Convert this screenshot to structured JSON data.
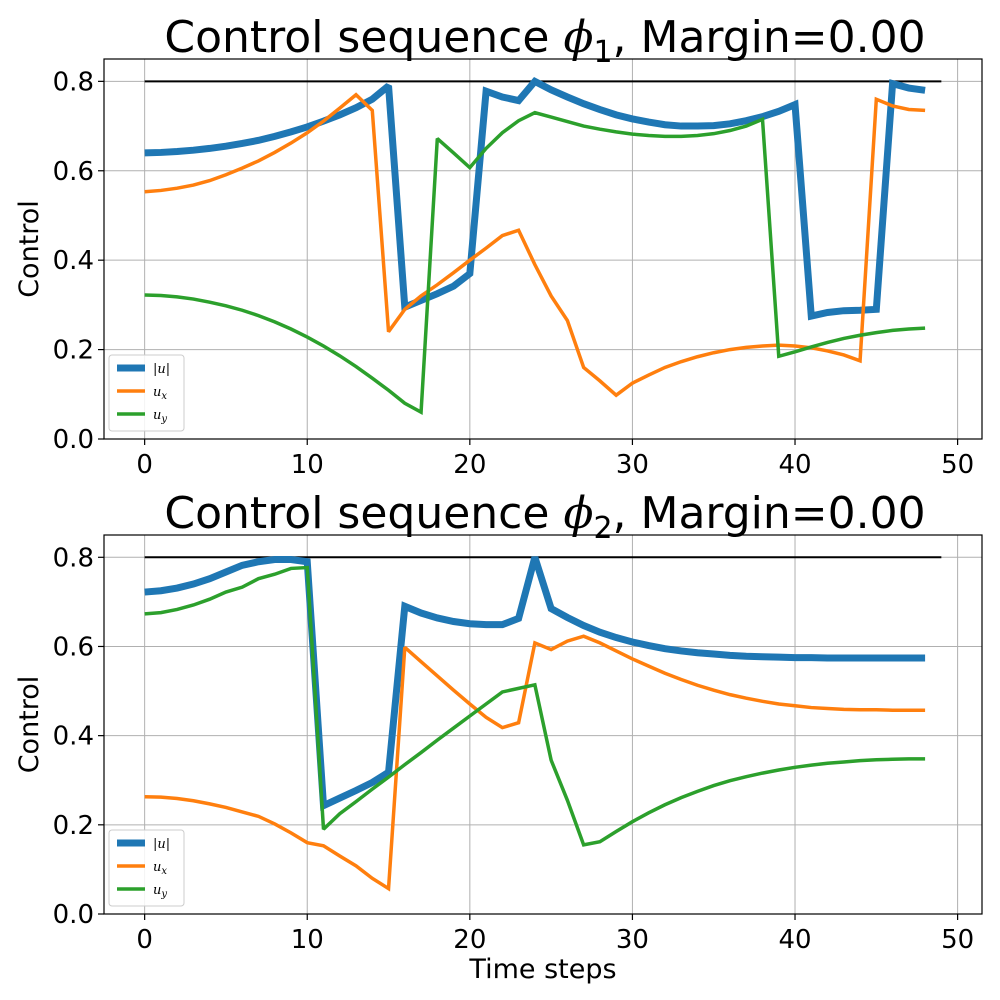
{
  "chart_data": [
    {
      "type": "line",
      "title": "Control sequence ϕ₁, Margin=0.00",
      "title_main": "Control sequence ",
      "title_symbol": "ϕ",
      "title_sub": "1",
      "title_tail": ", Margin=0.00",
      "xlabel": "",
      "ylabel": "Control",
      "xlim": [
        -2.5,
        51.5
      ],
      "ylim": [
        0.0,
        0.85
      ],
      "xticks": [
        0,
        10,
        20,
        30,
        40,
        50
      ],
      "xtick_labels": [
        "0",
        "10",
        "20",
        "30",
        "40",
        "50"
      ],
      "yticks": [
        0.0,
        0.2,
        0.4,
        0.6,
        0.8
      ],
      "ytick_labels": [
        "0.0",
        "0.2",
        "0.4",
        "0.6",
        "0.8"
      ],
      "grid": true,
      "legend_position": "lower-left",
      "reference_line": {
        "y": 0.8,
        "x": [
          0,
          49
        ],
        "color": "#000000"
      },
      "series": [
        {
          "name": "|u|",
          "legend_label": "|u|",
          "legend_sub": "",
          "color": "#1f77b4",
          "x": [
            0,
            1,
            2,
            3,
            4,
            5,
            6,
            7,
            8,
            9,
            10,
            11,
            12,
            13,
            14,
            15,
            16,
            17,
            18,
            19,
            20,
            21,
            22,
            23,
            24,
            25,
            26,
            27,
            28,
            29,
            30,
            31,
            32,
            33,
            34,
            35,
            36,
            37,
            38,
            39,
            40,
            41,
            42,
            43,
            44,
            45,
            46,
            47,
            48
          ],
          "values": [
            0.64,
            0.641,
            0.643,
            0.646,
            0.65,
            0.655,
            0.661,
            0.668,
            0.677,
            0.687,
            0.698,
            0.711,
            0.725,
            0.741,
            0.76,
            0.79,
            0.295,
            0.31,
            0.325,
            0.342,
            0.37,
            0.778,
            0.765,
            0.757,
            0.8,
            0.781,
            0.765,
            0.75,
            0.737,
            0.725,
            0.716,
            0.709,
            0.703,
            0.7,
            0.7,
            0.701,
            0.705,
            0.712,
            0.721,
            0.733,
            0.748,
            0.275,
            0.283,
            0.287,
            0.288,
            0.29,
            0.795,
            0.785,
            0.78
          ]
        },
        {
          "name": "u_x",
          "legend_label": "u",
          "legend_sub": "x",
          "color": "#ff7f0e",
          "x": [
            0,
            1,
            2,
            3,
            4,
            5,
            6,
            7,
            8,
            9,
            10,
            11,
            12,
            13,
            14,
            15,
            16,
            17,
            18,
            19,
            20,
            21,
            22,
            23,
            24,
            25,
            26,
            27,
            28,
            29,
            30,
            31,
            32,
            33,
            34,
            35,
            36,
            37,
            38,
            39,
            40,
            41,
            42,
            43,
            44,
            45,
            46,
            47,
            48
          ],
          "values": [
            0.553,
            0.556,
            0.561,
            0.568,
            0.578,
            0.591,
            0.606,
            0.622,
            0.641,
            0.662,
            0.685,
            0.711,
            0.74,
            0.77,
            0.735,
            0.24,
            0.29,
            0.32,
            0.345,
            0.372,
            0.4,
            0.427,
            0.455,
            0.467,
            0.39,
            0.32,
            0.265,
            0.16,
            0.13,
            0.098,
            0.125,
            0.143,
            0.16,
            0.173,
            0.184,
            0.193,
            0.2,
            0.205,
            0.208,
            0.21,
            0.208,
            0.204,
            0.197,
            0.188,
            0.175,
            0.76,
            0.745,
            0.737,
            0.735
          ]
        },
        {
          "name": "u_y",
          "legend_label": "u",
          "legend_sub": "y",
          "color": "#2ca02c",
          "x": [
            0,
            1,
            2,
            3,
            4,
            5,
            6,
            7,
            8,
            9,
            10,
            11,
            12,
            13,
            14,
            15,
            16,
            17,
            18,
            19,
            20,
            21,
            22,
            23,
            24,
            25,
            26,
            27,
            28,
            29,
            30,
            31,
            32,
            33,
            34,
            35,
            36,
            37,
            38,
            39,
            40,
            41,
            42,
            43,
            44,
            45,
            46,
            47,
            48
          ],
          "values": [
            0.322,
            0.321,
            0.318,
            0.313,
            0.306,
            0.298,
            0.288,
            0.276,
            0.262,
            0.246,
            0.228,
            0.208,
            0.186,
            0.162,
            0.136,
            0.109,
            0.08,
            0.06,
            0.672,
            0.64,
            0.607,
            0.65,
            0.685,
            0.712,
            0.73,
            0.72,
            0.71,
            0.7,
            0.693,
            0.687,
            0.682,
            0.679,
            0.677,
            0.677,
            0.679,
            0.683,
            0.69,
            0.7,
            0.715,
            0.185,
            0.195,
            0.206,
            0.216,
            0.225,
            0.232,
            0.238,
            0.243,
            0.246,
            0.248
          ]
        }
      ]
    },
    {
      "type": "line",
      "title": "Control sequence ϕ₂, Margin=0.00",
      "title_main": "Control sequence ",
      "title_symbol": "ϕ",
      "title_sub": "2",
      "title_tail": ", Margin=0.00",
      "xlabel": "Time steps",
      "ylabel": "Control",
      "xlim": [
        -2.5,
        51.5
      ],
      "ylim": [
        0.0,
        0.85
      ],
      "xticks": [
        0,
        10,
        20,
        30,
        40,
        50
      ],
      "xtick_labels": [
        "0",
        "10",
        "20",
        "30",
        "40",
        "50"
      ],
      "yticks": [
        0.0,
        0.2,
        0.4,
        0.6,
        0.8
      ],
      "ytick_labels": [
        "0.0",
        "0.2",
        "0.4",
        "0.6",
        "0.8"
      ],
      "grid": true,
      "legend_position": "lower-left",
      "reference_line": {
        "y": 0.8,
        "x": [
          0,
          49
        ],
        "color": "#000000"
      },
      "series": [
        {
          "name": "|u|",
          "legend_label": "|u|",
          "legend_sub": "",
          "color": "#1f77b4",
          "x": [
            0,
            1,
            2,
            3,
            4,
            5,
            6,
            7,
            8,
            9,
            10,
            11,
            12,
            13,
            14,
            15,
            16,
            17,
            18,
            19,
            20,
            21,
            22,
            23,
            24,
            25,
            26,
            27,
            28,
            29,
            30,
            31,
            32,
            33,
            34,
            35,
            36,
            37,
            38,
            39,
            40,
            41,
            42,
            43,
            44,
            45,
            46,
            47,
            48
          ],
          "values": [
            0.722,
            0.725,
            0.731,
            0.74,
            0.752,
            0.767,
            0.782,
            0.79,
            0.795,
            0.795,
            0.79,
            0.243,
            0.26,
            0.277,
            0.295,
            0.318,
            0.69,
            0.675,
            0.664,
            0.656,
            0.651,
            0.649,
            0.649,
            0.663,
            0.8,
            0.685,
            0.665,
            0.647,
            0.632,
            0.62,
            0.61,
            0.602,
            0.595,
            0.59,
            0.586,
            0.583,
            0.58,
            0.578,
            0.577,
            0.576,
            0.575,
            0.575,
            0.574,
            0.574,
            0.574,
            0.574,
            0.574,
            0.574,
            0.574
          ]
        },
        {
          "name": "u_x",
          "legend_label": "u",
          "legend_sub": "x",
          "color": "#ff7f0e",
          "x": [
            0,
            1,
            2,
            3,
            4,
            5,
            6,
            7,
            8,
            9,
            10,
            11,
            12,
            13,
            14,
            15,
            16,
            17,
            18,
            19,
            20,
            21,
            22,
            23,
            24,
            25,
            26,
            27,
            28,
            29,
            30,
            31,
            32,
            33,
            34,
            35,
            36,
            37,
            38,
            39,
            40,
            41,
            42,
            43,
            44,
            45,
            46,
            47,
            48
          ],
          "values": [
            0.263,
            0.262,
            0.259,
            0.254,
            0.247,
            0.239,
            0.229,
            0.219,
            0.202,
            0.182,
            0.16,
            0.153,
            0.13,
            0.108,
            0.08,
            0.057,
            0.598,
            0.566,
            0.534,
            0.502,
            0.471,
            0.441,
            0.418,
            0.429,
            0.608,
            0.593,
            0.612,
            0.623,
            0.608,
            0.59,
            0.572,
            0.556,
            0.54,
            0.526,
            0.513,
            0.502,
            0.492,
            0.484,
            0.477,
            0.471,
            0.467,
            0.463,
            0.461,
            0.459,
            0.458,
            0.458,
            0.457,
            0.457,
            0.457
          ]
        },
        {
          "name": "u_y",
          "legend_label": "u",
          "legend_sub": "y",
          "color": "#2ca02c",
          "x": [
            0,
            1,
            2,
            3,
            4,
            5,
            6,
            7,
            8,
            9,
            10,
            11,
            12,
            13,
            14,
            15,
            16,
            17,
            18,
            19,
            20,
            21,
            22,
            23,
            24,
            25,
            26,
            27,
            28,
            29,
            30,
            31,
            32,
            33,
            34,
            35,
            36,
            37,
            38,
            39,
            40,
            41,
            42,
            43,
            44,
            45,
            46,
            47,
            48
          ],
          "values": [
            0.673,
            0.676,
            0.683,
            0.693,
            0.706,
            0.722,
            0.733,
            0.752,
            0.762,
            0.775,
            0.777,
            0.19,
            0.225,
            0.252,
            0.28,
            0.307,
            0.335,
            0.362,
            0.39,
            0.417,
            0.444,
            0.471,
            0.498,
            0.506,
            0.514,
            0.345,
            0.255,
            0.155,
            0.162,
            0.185,
            0.207,
            0.227,
            0.245,
            0.261,
            0.275,
            0.288,
            0.299,
            0.308,
            0.316,
            0.323,
            0.329,
            0.334,
            0.338,
            0.341,
            0.344,
            0.346,
            0.347,
            0.348,
            0.348
          ]
        }
      ]
    }
  ]
}
